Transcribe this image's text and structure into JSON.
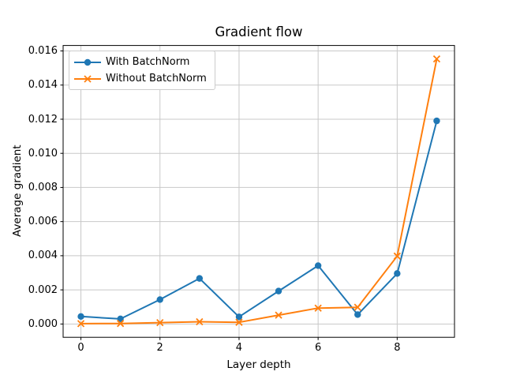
{
  "chart_data": {
    "type": "line",
    "title": "Gradient flow",
    "xlabel": "Layer depth",
    "ylabel": "Average gradient",
    "x": [
      0,
      1,
      2,
      3,
      4,
      5,
      6,
      7,
      8,
      9
    ],
    "series": [
      {
        "name": "With BatchNorm",
        "color": "#1f77b4",
        "marker": "circle",
        "values": [
          0.00044,
          0.0003,
          0.00143,
          0.00267,
          0.00042,
          0.00193,
          0.00342,
          0.00055,
          0.00296,
          0.0119
        ]
      },
      {
        "name": "Without BatchNorm",
        "color": "#ff7f0e",
        "marker": "x",
        "values": [
          2e-05,
          3e-05,
          8e-05,
          0.00013,
          0.0001,
          0.00052,
          0.00093,
          0.00098,
          0.00398,
          0.01553
        ]
      }
    ],
    "xticks": [
      0,
      2,
      4,
      6,
      8
    ],
    "yticks": [
      0,
      0.002,
      0.004,
      0.006,
      0.008,
      0.01,
      0.012,
      0.014,
      0.016
    ],
    "ytick_labels": [
      "0.000",
      "0.002",
      "0.004",
      "0.006",
      "0.008",
      "0.010",
      "0.012",
      "0.014",
      "0.016"
    ],
    "xlim": [
      -0.45,
      9.45
    ],
    "ylim": [
      -0.00078,
      0.01632
    ],
    "grid": true,
    "legend_position": "upper left",
    "style": {
      "grid_color": "#c8c8c8",
      "spine_color": "#000000",
      "tick_color": "#000000",
      "legend_border_color": "#cccccc",
      "background": "#ffffff"
    }
  }
}
